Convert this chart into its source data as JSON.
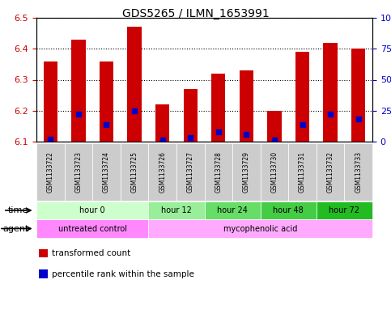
{
  "title": "GDS5265 / ILMN_1653991",
  "samples": [
    "GSM1133722",
    "GSM1133723",
    "GSM1133724",
    "GSM1133725",
    "GSM1133726",
    "GSM1133727",
    "GSM1133728",
    "GSM1133729",
    "GSM1133730",
    "GSM1133731",
    "GSM1133732",
    "GSM1133733"
  ],
  "transformed_counts": [
    6.36,
    6.43,
    6.36,
    6.47,
    6.22,
    6.27,
    6.32,
    6.33,
    6.2,
    6.39,
    6.42,
    6.4
  ],
  "baseline": 6.1,
  "percentile_ranks": [
    2,
    22,
    14,
    25,
    1,
    3,
    8,
    6,
    1,
    14,
    22,
    18
  ],
  "ylim": [
    6.1,
    6.5
  ],
  "y2lim": [
    0,
    100
  ],
  "yticks": [
    6.1,
    6.2,
    6.3,
    6.4,
    6.5
  ],
  "y2ticks": [
    0,
    25,
    50,
    75,
    100
  ],
  "y2ticklabels": [
    "0",
    "25",
    "50",
    "75",
    "100%"
  ],
  "bar_color": "#cc0000",
  "percentile_color": "#0000cc",
  "time_groups": [
    {
      "label": "hour 0",
      "start": 0,
      "end": 4,
      "color": "#ccffcc"
    },
    {
      "label": "hour 12",
      "start": 4,
      "end": 6,
      "color": "#99ee99"
    },
    {
      "label": "hour 24",
      "start": 6,
      "end": 8,
      "color": "#66dd66"
    },
    {
      "label": "hour 48",
      "start": 8,
      "end": 10,
      "color": "#44cc44"
    },
    {
      "label": "hour 72",
      "start": 10,
      "end": 12,
      "color": "#22bb22"
    }
  ],
  "agent_groups": [
    {
      "label": "untreated control",
      "start": 0,
      "end": 4,
      "color": "#ff88ff"
    },
    {
      "label": "mycophenolic acid",
      "start": 4,
      "end": 12,
      "color": "#ffaaff"
    }
  ],
  "ylabel_color": "#cc0000",
  "y2label_color": "#0000cc",
  "sample_box_color": "#cccccc",
  "background_color": "#ffffff",
  "legend_items": [
    {
      "label": "transformed count",
      "color": "#cc0000"
    },
    {
      "label": "percentile rank within the sample",
      "color": "#0000cc"
    }
  ]
}
